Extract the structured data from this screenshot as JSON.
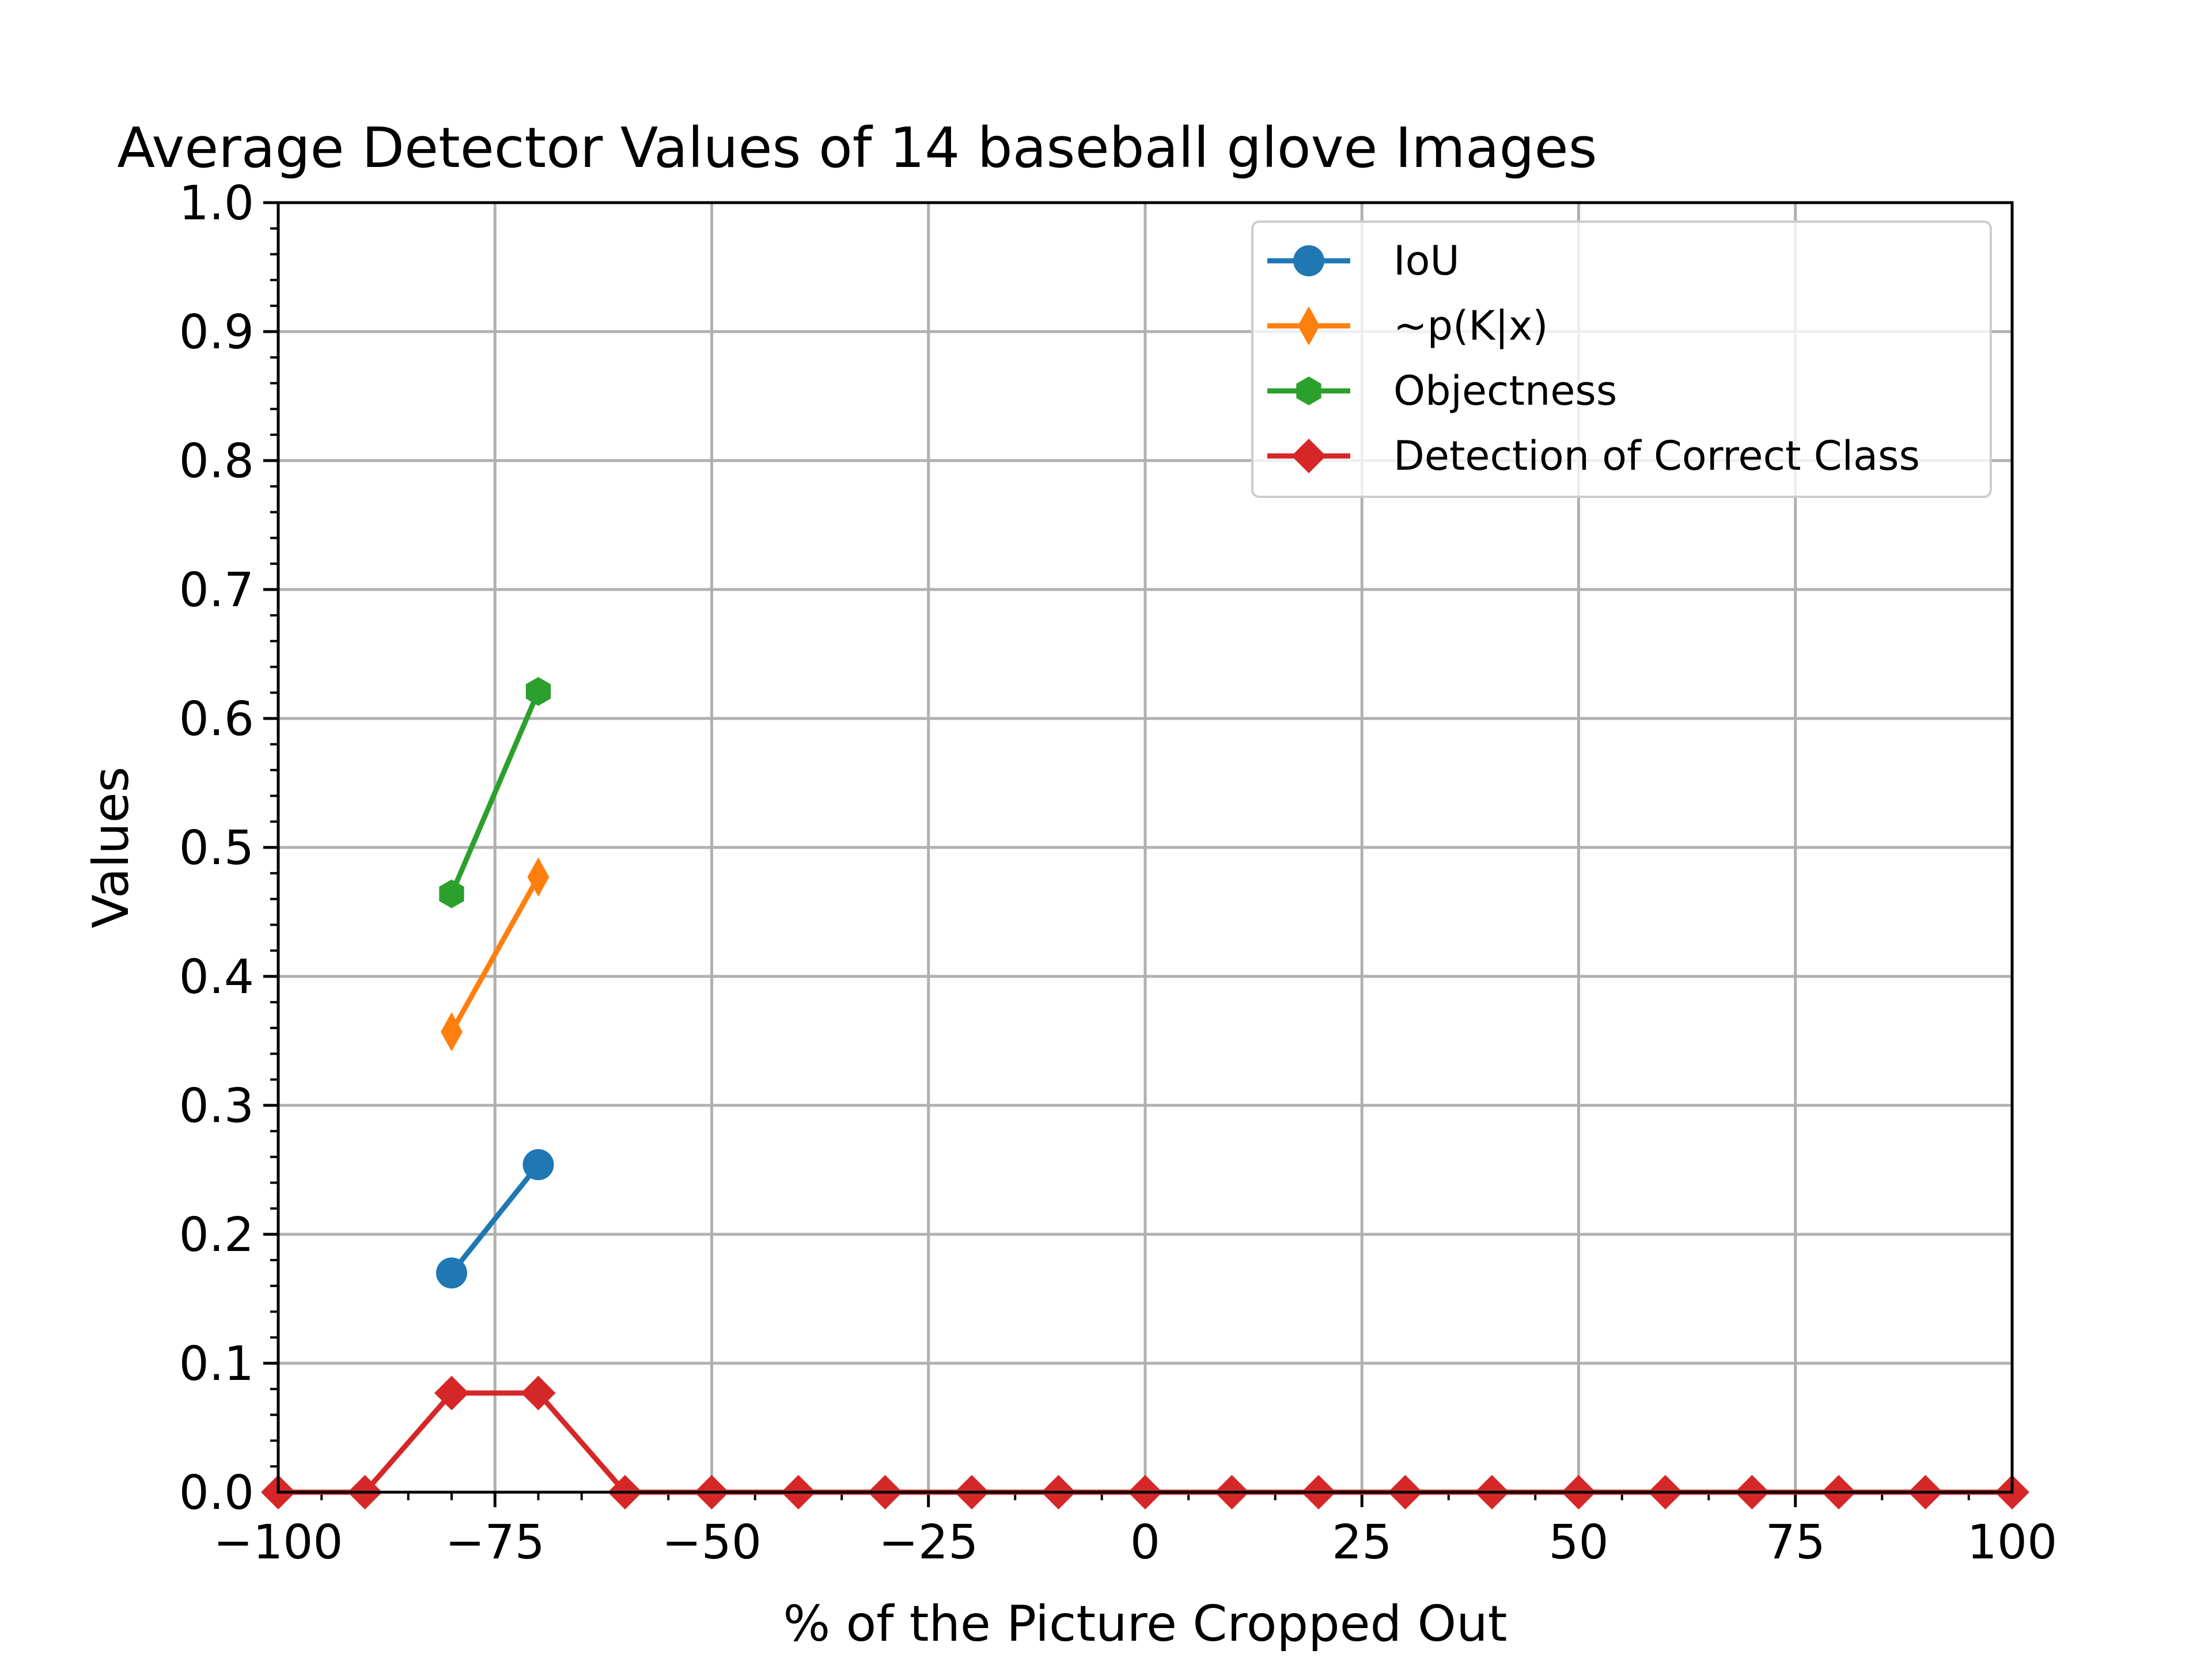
{
  "chart_data": {
    "type": "line",
    "title": "Average Detector Values of 14 baseball glove Images",
    "xlabel": "% of the Picture Cropped Out",
    "ylabel": "Values",
    "xlim": [
      -100,
      100
    ],
    "ylim": [
      0.0,
      1.0
    ],
    "x_ticks": [
      -100,
      -75,
      -50,
      -25,
      0,
      25,
      50,
      75,
      100
    ],
    "x_tick_labels": [
      "−100",
      "−75",
      "−50",
      "−25",
      "0",
      "25",
      "50",
      "75",
      "100"
    ],
    "y_ticks": [
      0.0,
      0.1,
      0.2,
      0.3,
      0.4,
      0.5,
      0.6,
      0.7,
      0.8,
      0.9,
      1.0
    ],
    "y_tick_labels": [
      "0.0",
      "0.1",
      "0.2",
      "0.3",
      "0.4",
      "0.5",
      "0.6",
      "0.7",
      "0.8",
      "0.9",
      "1.0"
    ],
    "grid": true,
    "legend_position": "top-right",
    "series": [
      {
        "name": "IoU",
        "color": "#1f77b4",
        "marker": "circle",
        "x": [
          -80,
          -70
        ],
        "y": [
          0.17,
          0.254
        ]
      },
      {
        "name": "~p(K|x)",
        "color": "#ff7f0e",
        "marker": "thin-diamond",
        "x": [
          -80,
          -70
        ],
        "y": [
          0.357,
          0.477
        ]
      },
      {
        "name": "Objectness",
        "color": "#2ca02c",
        "marker": "hexagon",
        "x": [
          -80,
          -70
        ],
        "y": [
          0.464,
          0.621
        ]
      },
      {
        "name": "Detection of Correct Class",
        "color": "#d62728",
        "marker": "diamond",
        "x": [
          -100,
          -90,
          -80,
          -70,
          -60,
          -50,
          -40,
          -30,
          -20,
          -10,
          0,
          10,
          20,
          30,
          40,
          50,
          60,
          70,
          80,
          90,
          100
        ],
        "y": [
          0,
          0,
          0.0769,
          0.0769,
          0,
          0,
          0,
          0,
          0,
          0,
          0,
          0,
          0,
          0,
          0,
          0,
          0,
          0,
          0,
          0,
          0
        ]
      }
    ]
  }
}
